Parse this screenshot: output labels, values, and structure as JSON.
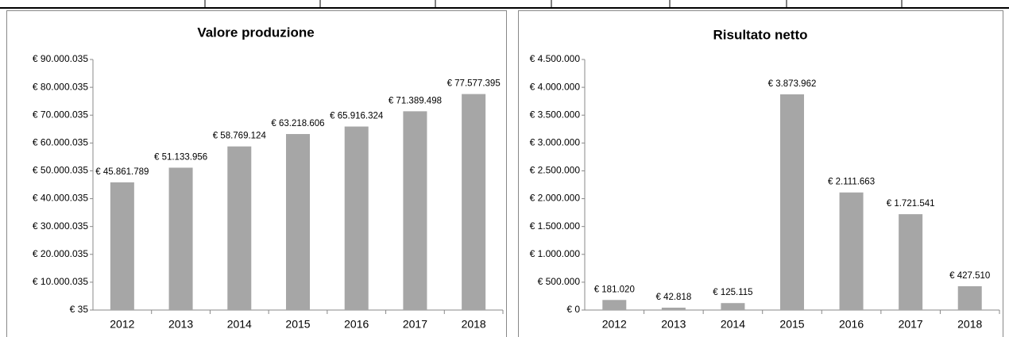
{
  "chart_data": [
    {
      "type": "bar",
      "title": "Valore produzione",
      "categories": [
        "2012",
        "2013",
        "2014",
        "2015",
        "2016",
        "2017",
        "2018"
      ],
      "values": [
        45861789,
        51133956,
        58769124,
        63218606,
        65916324,
        71389498,
        77577395
      ],
      "value_labels": [
        "€ 45.861.789",
        "€ 51.133.956",
        "€ 58.769.124",
        "€ 63.218.606",
        "€ 65.916.324",
        "€ 71.389.498",
        "€ 77.577.395"
      ],
      "color": "#a6a6a6",
      "ylim": [
        35,
        90000035
      ],
      "yticks": [
        {
          "value": 35,
          "label": "€ 35"
        },
        {
          "value": 10000035,
          "label": "€ 10.000.035"
        },
        {
          "value": 20000035,
          "label": "€ 20.000.035"
        },
        {
          "value": 30000035,
          "label": "€ 30.000.035"
        },
        {
          "value": 40000035,
          "label": "€ 40.000.035"
        },
        {
          "value": 50000035,
          "label": "€ 50.000.035"
        },
        {
          "value": 60000035,
          "label": "€ 60.000.035"
        },
        {
          "value": 70000035,
          "label": "€ 70.000.035"
        },
        {
          "value": 80000035,
          "label": "€ 80.000.035"
        },
        {
          "value": 90000035,
          "label": "€ 90.000.035"
        }
      ],
      "grid": false
    },
    {
      "type": "bar",
      "title": "Risultato netto",
      "categories": [
        "2012",
        "2013",
        "2014",
        "2015",
        "2016",
        "2017",
        "2018"
      ],
      "values": [
        181020,
        42818,
        125115,
        3873962,
        2111663,
        1721541,
        427510
      ],
      "value_labels": [
        "€ 181.020",
        "€ 42.818",
        "€ 125.115",
        "€ 3.873.962",
        "€ 2.111.663",
        "€ 1.721.541",
        "€ 427.510"
      ],
      "color": "#a6a6a6",
      "ylim": [
        0,
        4500000
      ],
      "yticks": [
        {
          "value": 0,
          "label": "€ 0"
        },
        {
          "value": 500000,
          "label": "€ 500.000"
        },
        {
          "value": 1000000,
          "label": "€ 1.000.000"
        },
        {
          "value": 1500000,
          "label": "€ 1.500.000"
        },
        {
          "value": 2000000,
          "label": "€ 2.000.000"
        },
        {
          "value": 2500000,
          "label": "€ 2.500.000"
        },
        {
          "value": 3000000,
          "label": "€ 3.000.000"
        },
        {
          "value": 3500000,
          "label": "€ 3.500.000"
        },
        {
          "value": 4000000,
          "label": "€ 4.000.000"
        },
        {
          "value": 4500000,
          "label": "€ 4.500.000"
        }
      ],
      "grid": false
    }
  ]
}
